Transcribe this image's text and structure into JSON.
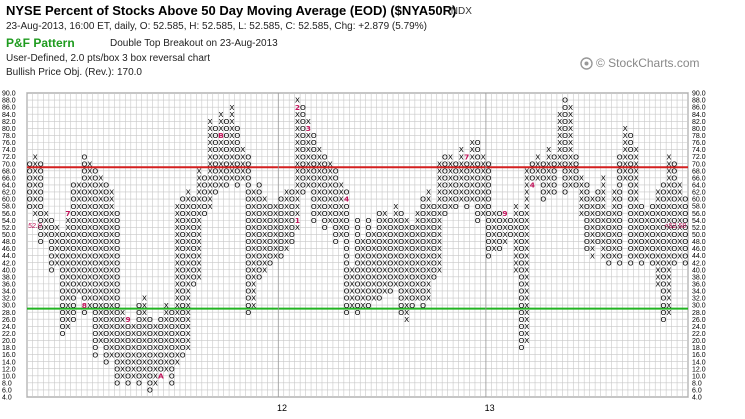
{
  "header": {
    "title": "NYSE Percent of Stocks Above 50 Day Moving Average (EOD) ($NYA50R)",
    "exchange": "INDX",
    "quote": "23-Aug-2013, 16:00 ET, daily, O: 52.585, H: 52.585, L: 52.585, C: 52.585, Chg: +2.879 (5.79%)",
    "pattern_label": "P&F Pattern",
    "pattern_desc": "Double Top Breakout on 23-Aug-2013",
    "chart_settings": "User-Defined, 2.0 pts/box 3 box reversal chart",
    "price_objective": "Bullish Price Obj. (Rev.): 170.0",
    "brand": "© StockCharts.com"
  },
  "chart_data": {
    "type": "point-and-figure",
    "box_size": 2.0,
    "reversal": 3,
    "y_range": [
      4.0,
      90.0
    ],
    "y_ticks": [
      "4.0",
      "6.0",
      "8.0",
      "10.0",
      "12.0",
      "14.0",
      "16.0",
      "18.0",
      "20.0",
      "22.0",
      "24.0",
      "26.0",
      "28.0",
      "30.0",
      "32.0",
      "34.0",
      "36.0",
      "38.0",
      "40.0",
      "42.0",
      "44.0",
      "46.0",
      "48.0",
      "50.0",
      "52.0",
      "54.0",
      "56.0",
      "58.0",
      "60.0",
      "62.0",
      "64.0",
      "66.0",
      "68.0",
      "70.0",
      "72.0",
      "74.0",
      "76.0",
      "78.0",
      "80.0",
      "82.0",
      "84.0",
      "86.0",
      "88.0",
      "90.0"
    ],
    "x_labels": [
      {
        "label": "12",
        "column": 46
      },
      {
        "label": "13",
        "column": 84
      }
    ],
    "reference_lines": [
      {
        "value": 69,
        "color": "#d42020"
      },
      {
        "value": 29,
        "color": "#22b422"
      }
    ],
    "last_price_left": "52.0",
    "last_price_right": "52.58",
    "columns": [
      [
        "O",
        58,
        70
      ],
      [
        "X",
        56,
        72
      ],
      [
        "O",
        48,
        70
      ],
      [
        "X",
        50,
        56
      ],
      [
        "O",
        40,
        54
      ],
      [
        "X",
        42,
        52
      ],
      [
        "O",
        22,
        50
      ],
      [
        "X",
        24,
        56
      ],
      [
        "O",
        26,
        64
      ],
      [
        "X",
        34,
        64
      ],
      [
        "O",
        28,
        72
      ],
      [
        "X",
        30,
        70
      ],
      [
        "O",
        16,
        68
      ],
      [
        "X",
        20,
        66
      ],
      [
        "O",
        14,
        64
      ],
      [
        "X",
        16,
        62
      ],
      [
        "O",
        8,
        56
      ],
      [
        "X",
        10,
        28
      ],
      [
        "O",
        8,
        26
      ],
      [
        "X",
        10,
        24
      ],
      [
        "O",
        8,
        30
      ],
      [
        "X",
        10,
        32
      ],
      [
        "O",
        6,
        26
      ],
      [
        "X",
        8,
        24
      ],
      [
        "O",
        10,
        26
      ],
      [
        "X",
        12,
        30
      ],
      [
        "O",
        8,
        28
      ],
      [
        "X",
        14,
        58
      ],
      [
        "O",
        16,
        60
      ],
      [
        "X",
        18,
        62
      ],
      [
        "O",
        36,
        60
      ],
      [
        "X",
        38,
        68
      ],
      [
        "O",
        56,
        66
      ],
      [
        "X",
        58,
        82
      ],
      [
        "O",
        62,
        80
      ],
      [
        "X",
        64,
        84
      ],
      [
        "O",
        64,
        82
      ],
      [
        "X",
        66,
        86
      ],
      [
        "O",
        64,
        80
      ],
      [
        "X",
        66,
        74
      ],
      [
        "O",
        28,
        72
      ],
      [
        "X",
        30,
        62
      ],
      [
        "O",
        38,
        64
      ],
      [
        "X",
        40,
        60
      ],
      [
        "O",
        42,
        58
      ],
      [
        "X",
        44,
        58
      ],
      [
        "O",
        44,
        60
      ],
      [
        "X",
        46,
        62
      ],
      [
        "O",
        48,
        62
      ],
      [
        "X",
        52,
        88
      ],
      [
        "O",
        62,
        86
      ],
      [
        "X",
        64,
        82
      ],
      [
        "O",
        54,
        78
      ],
      [
        "X",
        56,
        74
      ],
      [
        "O",
        52,
        72
      ],
      [
        "X",
        54,
        70
      ],
      [
        "O",
        48,
        68
      ],
      [
        "X",
        50,
        64
      ],
      [
        "O",
        28,
        62
      ],
      [
        "X",
        30,
        40
      ],
      [
        "O",
        28,
        54
      ],
      [
        "X",
        30,
        48
      ],
      [
        "O",
        30,
        54
      ],
      [
        "X",
        32,
        50
      ],
      [
        "O",
        32,
        56
      ],
      [
        "X",
        34,
        56
      ],
      [
        "O",
        34,
        54
      ],
      [
        "X",
        36,
        58
      ],
      [
        "O",
        28,
        56
      ],
      [
        "X",
        26,
        54
      ],
      [
        "O",
        30,
        52
      ],
      [
        "X",
        32,
        56
      ],
      [
        "O",
        30,
        60
      ],
      [
        "X",
        32,
        62
      ],
      [
        "O",
        38,
        58
      ],
      [
        "X",
        40,
        70
      ],
      [
        "O",
        56,
        72
      ],
      [
        "X",
        58,
        72
      ],
      [
        "O",
        58,
        70
      ],
      [
        "X",
        60,
        74
      ],
      [
        "O",
        58,
        72
      ],
      [
        "X",
        60,
        76
      ],
      [
        "O",
        54,
        76
      ],
      [
        "X",
        56,
        72
      ],
      [
        "O",
        44,
        70
      ],
      [
        "X",
        46,
        56
      ],
      [
        "O",
        46,
        56
      ],
      [
        "X",
        48,
        56
      ],
      [
        "O",
        50,
        54
      ],
      [
        "X",
        40,
        58
      ],
      [
        "O",
        18,
        56
      ],
      [
        "X",
        20,
        68
      ],
      [
        "O",
        64,
        70
      ],
      [
        "X",
        66,
        72
      ],
      [
        "O",
        60,
        70
      ],
      [
        "X",
        62,
        74
      ],
      [
        "O",
        62,
        72
      ],
      [
        "X",
        70,
        84
      ],
      [
        "O",
        62,
        88
      ],
      [
        "X",
        64,
        86
      ],
      [
        "O",
        64,
        72
      ],
      [
        "X",
        56,
        66
      ],
      [
        "O",
        46,
        64
      ],
      [
        "X",
        44,
        60
      ],
      [
        "O",
        48,
        62
      ],
      [
        "X",
        44,
        66
      ],
      [
        "O",
        42,
        56
      ],
      [
        "X",
        44,
        62
      ],
      [
        "O",
        42,
        72
      ],
      [
        "X",
        66,
        80
      ],
      [
        "O",
        42,
        78
      ],
      [
        "X",
        44,
        74
      ],
      [
        "O",
        42,
        58
      ],
      [
        "X",
        44,
        56
      ],
      [
        "O",
        42,
        58
      ],
      [
        "X",
        36,
        62
      ],
      [
        "O",
        26,
        64
      ],
      [
        "X",
        28,
        72
      ],
      [
        "O",
        42,
        70
      ],
      [
        "X",
        44,
        64
      ],
      [
        "O",
        42,
        60
      ],
      [
        "X",
        46,
        54
      ]
    ],
    "month_markers": [
      {
        "col": 0,
        "value": 73,
        "label": "5"
      },
      {
        "col": 4,
        "value": 56,
        "label": "6"
      },
      {
        "col": 7,
        "value": 56,
        "label": "7"
      },
      {
        "col": 10,
        "value": 30,
        "label": "8"
      },
      {
        "col": 18,
        "value": 26,
        "label": "9"
      },
      {
        "col": 24,
        "value": 10,
        "label": "A"
      },
      {
        "col": 35,
        "value": 78,
        "label": "B"
      },
      {
        "col": 44,
        "value": 70,
        "label": "C"
      },
      {
        "col": 49,
        "value": 86,
        "label": "2"
      },
      {
        "col": 51,
        "value": 80,
        "label": "3"
      },
      {
        "col": 49,
        "value": 54,
        "label": "1"
      },
      {
        "col": 58,
        "value": 60,
        "label": "4"
      },
      {
        "col": 62,
        "value": 56,
        "label": "5"
      },
      {
        "col": 71,
        "value": 64,
        "label": "6"
      },
      {
        "col": 80,
        "value": 72,
        "label": "7"
      },
      {
        "col": 83,
        "value": 48,
        "label": "8"
      },
      {
        "col": 87,
        "value": 56,
        "label": "9"
      },
      {
        "col": 89,
        "value": 72,
        "label": "A"
      },
      {
        "col": 90,
        "value": 86,
        "label": "2"
      },
      {
        "col": 92,
        "value": 64,
        "label": "4"
      },
      {
        "col": 97,
        "value": 66,
        "label": "5"
      },
      {
        "col": 100,
        "value": 56,
        "label": "6"
      },
      {
        "col": 106,
        "value": 64,
        "label": "8"
      },
      {
        "col": 105,
        "value": 36,
        "label": "7"
      }
    ]
  },
  "colors": {
    "grid": "#c8c8c8",
    "grid_dark": "#9a9a9a",
    "x_mark": "#000000",
    "o_mark": "#000000",
    "month_mark": "#c0145a",
    "last_x": "#2ea82e",
    "price_marker": "#c0145a"
  }
}
